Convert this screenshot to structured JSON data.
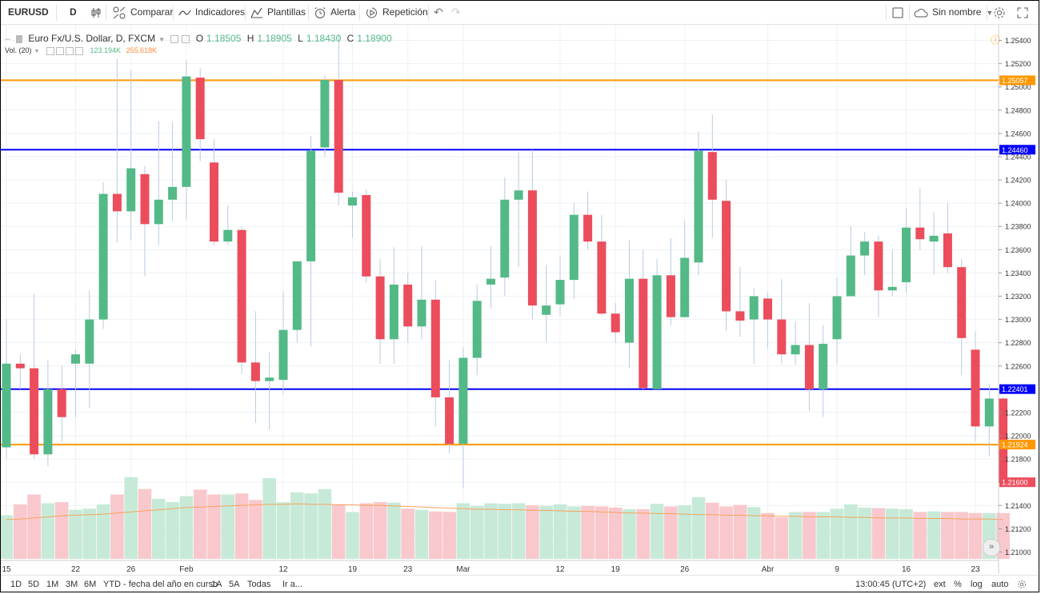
{
  "toolbar": {
    "symbol": "EURUSD",
    "interval": "D",
    "compare": "Comparar",
    "indicators": "Indicadores",
    "templates": "Plantillas",
    "alert": "Alerta",
    "replay": "Repetición",
    "layout_name": "Sin nombre"
  },
  "legend": {
    "title": "Euro Fx/U.S. Dollar, D, FXCM",
    "o_label": "O",
    "o": "1.18505",
    "h_label": "H",
    "h": "1.18905",
    "l_label": "L",
    "l": "1.18430",
    "c_label": "C",
    "c": "1.18900",
    "vol_label": "Vol. (20)",
    "vol_value": "123.194K",
    "vol_ma": "255.618K"
  },
  "bottom": {
    "ranges": [
      "1D",
      "5D",
      "1M",
      "3M",
      "6M",
      "YTD - fecha del año en curso",
      "1A",
      "5A",
      "Todas"
    ],
    "goto": "Ir a...",
    "time": "13:00:45 (UTC+2)",
    "ext": "ext",
    "pct": "%",
    "log": "log",
    "auto": "auto"
  },
  "colors": {
    "up": "#53b987",
    "down": "#eb4d5c",
    "orange_line": "#ff9800",
    "blue_line": "#0000ff"
  },
  "chart_data": {
    "type": "candlestick",
    "title": "Euro Fx/U.S. Dollar, D, FXCM",
    "ylim": [
      1.209,
      1.255
    ],
    "y_ticks": [
      "1.25400",
      "1.25200",
      "1.25000",
      "1.24800",
      "1.24600",
      "1.24400",
      "1.24200",
      "1.24000",
      "1.23800",
      "1.23600",
      "1.23400",
      "1.23200",
      "1.23000",
      "1.22800",
      "1.22600",
      "1.22400",
      "1.22200",
      "1.22000",
      "1.21800",
      "1.21600",
      "1.21400",
      "1.21200",
      "1.21000"
    ],
    "x_ticks": [
      {
        "label": "15",
        "i": 0
      },
      {
        "label": "22",
        "i": 5
      },
      {
        "label": "26",
        "i": 9
      },
      {
        "label": "Feb",
        "i": 13
      },
      {
        "label": "12",
        "i": 20
      },
      {
        "label": "19",
        "i": 25
      },
      {
        "label": "23",
        "i": 29
      },
      {
        "label": "Mar",
        "i": 33
      },
      {
        "label": "12",
        "i": 40
      },
      {
        "label": "19",
        "i": 44
      },
      {
        "label": "26",
        "i": 49
      },
      {
        "label": "Abr",
        "i": 55
      },
      {
        "label": "9",
        "i": 60
      },
      {
        "label": "16",
        "i": 65
      },
      {
        "label": "23",
        "i": 70
      }
    ],
    "hlines": [
      {
        "value": 1.25057,
        "label": "1.25057",
        "color": "orange"
      },
      {
        "value": 1.2446,
        "label": "1.24460",
        "color": "blue"
      },
      {
        "value": 1.22401,
        "label": "1.22401",
        "color": "blue"
      },
      {
        "value": 1.21924,
        "label": "1.21924",
        "color": "orange"
      }
    ],
    "last_price_label": "1.21600",
    "last_price": 1.216,
    "candles": [
      {
        "o": 1.219,
        "h": 1.23,
        "l": 1.218,
        "c": 1.2262
      },
      {
        "o": 1.2262,
        "h": 1.227,
        "l": 1.224,
        "c": 1.2258
      },
      {
        "o": 1.2258,
        "h": 1.2322,
        "l": 1.218,
        "c": 1.2184
      },
      {
        "o": 1.2184,
        "h": 1.2265,
        "l": 1.2174,
        "c": 1.224
      },
      {
        "o": 1.224,
        "h": 1.226,
        "l": 1.2195,
        "c": 1.2216
      },
      {
        "o": 1.2262,
        "h": 1.2274,
        "l": 1.2216,
        "c": 1.227
      },
      {
        "o": 1.2262,
        "h": 1.2325,
        "l": 1.2224,
        "c": 1.23
      },
      {
        "o": 1.23,
        "h": 1.2418,
        "l": 1.2292,
        "c": 1.2408
      },
      {
        "o": 1.2408,
        "h": 1.2524,
        "l": 1.2366,
        "c": 1.2393
      },
      {
        "o": 1.2393,
        "h": 1.2514,
        "l": 1.2368,
        "c": 1.243
      },
      {
        "o": 1.2425,
        "h": 1.2432,
        "l": 1.2337,
        "c": 1.2382
      },
      {
        "o": 1.2382,
        "h": 1.2471,
        "l": 1.2364,
        "c": 1.2403
      },
      {
        "o": 1.2403,
        "h": 1.247,
        "l": 1.2384,
        "c": 1.2414
      },
      {
        "o": 1.2414,
        "h": 1.2523,
        "l": 1.2386,
        "c": 1.2509
      },
      {
        "o": 1.2508,
        "h": 1.2516,
        "l": 1.2436,
        "c": 1.2455
      },
      {
        "o": 1.2435,
        "h": 1.2455,
        "l": 1.2364,
        "c": 1.2367
      },
      {
        "o": 1.2367,
        "h": 1.2398,
        "l": 1.2364,
        "c": 1.2377
      },
      {
        "o": 1.2377,
        "h": 1.238,
        "l": 1.2253,
        "c": 1.2263
      },
      {
        "o": 1.2263,
        "h": 1.2307,
        "l": 1.2211,
        "c": 1.2247
      },
      {
        "o": 1.2247,
        "h": 1.2272,
        "l": 1.2205,
        "c": 1.225
      },
      {
        "o": 1.2248,
        "h": 1.2324,
        "l": 1.2236,
        "c": 1.2291
      },
      {
        "o": 1.2291,
        "h": 1.2349,
        "l": 1.228,
        "c": 1.235
      },
      {
        "o": 1.235,
        "h": 1.2458,
        "l": 1.2277,
        "c": 1.2445
      },
      {
        "o": 1.2448,
        "h": 1.251,
        "l": 1.244,
        "c": 1.2506
      },
      {
        "o": 1.2506,
        "h": 1.2545,
        "l": 1.2398,
        "c": 1.2409
      },
      {
        "o": 1.2398,
        "h": 1.241,
        "l": 1.237,
        "c": 1.2405
      },
      {
        "o": 1.2407,
        "h": 1.2412,
        "l": 1.2332,
        "c": 1.2337
      },
      {
        "o": 1.2337,
        "h": 1.2352,
        "l": 1.2262,
        "c": 1.2283
      },
      {
        "o": 1.2283,
        "h": 1.2362,
        "l": 1.2262,
        "c": 1.233
      },
      {
        "o": 1.233,
        "h": 1.234,
        "l": 1.228,
        "c": 1.2294
      },
      {
        "o": 1.2294,
        "h": 1.2363,
        "l": 1.2283,
        "c": 1.2317
      },
      {
        "o": 1.2317,
        "h": 1.2334,
        "l": 1.2208,
        "c": 1.2233
      },
      {
        "o": 1.2233,
        "h": 1.2265,
        "l": 1.2185,
        "c": 1.2193
      },
      {
        "o": 1.2193,
        "h": 1.2276,
        "l": 1.2155,
        "c": 1.2267
      },
      {
        "o": 1.2267,
        "h": 1.233,
        "l": 1.2252,
        "c": 1.2316
      },
      {
        "o": 1.233,
        "h": 1.2363,
        "l": 1.231,
        "c": 1.2335
      },
      {
        "o": 1.2336,
        "h": 1.2422,
        "l": 1.232,
        "c": 1.2403
      },
      {
        "o": 1.2403,
        "h": 1.2444,
        "l": 1.2345,
        "c": 1.2411
      },
      {
        "o": 1.2411,
        "h": 1.2446,
        "l": 1.23,
        "c": 1.2312
      },
      {
        "o": 1.2304,
        "h": 1.2347,
        "l": 1.228,
        "c": 1.2312
      },
      {
        "o": 1.2313,
        "h": 1.2355,
        "l": 1.2303,
        "c": 1.2334
      },
      {
        "o": 1.2334,
        "h": 1.24,
        "l": 1.2318,
        "c": 1.239
      },
      {
        "o": 1.239,
        "h": 1.241,
        "l": 1.236,
        "c": 1.2367
      },
      {
        "o": 1.2367,
        "h": 1.239,
        "l": 1.2303,
        "c": 1.2305
      },
      {
        "o": 1.2305,
        "h": 1.2314,
        "l": 1.228,
        "c": 1.2289
      },
      {
        "o": 1.228,
        "h": 1.2368,
        "l": 1.2258,
        "c": 1.2335
      },
      {
        "o": 1.2335,
        "h": 1.236,
        "l": 1.224,
        "c": 1.2241
      },
      {
        "o": 1.224,
        "h": 1.2352,
        "l": 1.224,
        "c": 1.2338
      },
      {
        "o": 1.2338,
        "h": 1.237,
        "l": 1.2295,
        "c": 1.2302
      },
      {
        "o": 1.2302,
        "h": 1.2385,
        "l": 1.2302,
        "c": 1.2353
      },
      {
        "o": 1.2349,
        "h": 1.2462,
        "l": 1.2338,
        "c": 1.2445
      },
      {
        "o": 1.2444,
        "h": 1.2476,
        "l": 1.237,
        "c": 1.2403
      },
      {
        "o": 1.2402,
        "h": 1.242,
        "l": 1.229,
        "c": 1.2307
      },
      {
        "o": 1.2307,
        "h": 1.2345,
        "l": 1.2285,
        "c": 1.2299
      },
      {
        "o": 1.23,
        "h": 1.2327,
        "l": 1.2262,
        "c": 1.232
      },
      {
        "o": 1.2318,
        "h": 1.2323,
        "l": 1.2275,
        "c": 1.23
      },
      {
        "o": 1.23,
        "h": 1.2335,
        "l": 1.2262,
        "c": 1.227
      },
      {
        "o": 1.227,
        "h": 1.2298,
        "l": 1.2261,
        "c": 1.2278
      },
      {
        "o": 1.2278,
        "h": 1.2314,
        "l": 1.2221,
        "c": 1.224
      },
      {
        "o": 1.224,
        "h": 1.2295,
        "l": 1.2216,
        "c": 1.2279
      },
      {
        "o": 1.2283,
        "h": 1.2336,
        "l": 1.2262,
        "c": 1.232
      },
      {
        "o": 1.232,
        "h": 1.238,
        "l": 1.232,
        "c": 1.2355
      },
      {
        "o": 1.2355,
        "h": 1.2375,
        "l": 1.2338,
        "c": 1.2367
      },
      {
        "o": 1.2367,
        "h": 1.2372,
        "l": 1.2302,
        "c": 1.2325
      },
      {
        "o": 1.2325,
        "h": 1.236,
        "l": 1.232,
        "c": 1.2328
      },
      {
        "o": 1.2332,
        "h": 1.2396,
        "l": 1.2323,
        "c": 1.2379
      },
      {
        "o": 1.2379,
        "h": 1.2413,
        "l": 1.236,
        "c": 1.2369
      },
      {
        "o": 1.2367,
        "h": 1.2392,
        "l": 1.2339,
        "c": 1.2372
      },
      {
        "o": 1.2374,
        "h": 1.24,
        "l": 1.234,
        "c": 1.2345
      },
      {
        "o": 1.2345,
        "h": 1.2352,
        "l": 1.2252,
        "c": 1.2284
      },
      {
        "o": 1.2274,
        "h": 1.229,
        "l": 1.2195,
        "c": 1.2208
      },
      {
        "o": 1.2208,
        "h": 1.2245,
        "l": 1.2182,
        "c": 1.2232
      },
      {
        "o": 1.2232,
        "h": 1.2233,
        "l": 1.216,
        "c": 1.216
      }
    ],
    "volume_ylim": [
      0,
      220
    ],
    "volumes": [
      80,
      100,
      118,
      102,
      104,
      90,
      92,
      100,
      118,
      150,
      128,
      110,
      104,
      115,
      127,
      118,
      118,
      120,
      108,
      148,
      104,
      122,
      120,
      128,
      100,
      86,
      102,
      104,
      103,
      92,
      90,
      87,
      86,
      102,
      97,
      102,
      101,
      102,
      98,
      97,
      100,
      96,
      97,
      96,
      94,
      91,
      91,
      101,
      96,
      98,
      113,
      103,
      96,
      99,
      95,
      84,
      76,
      86,
      86,
      86,
      92,
      100,
      94,
      93,
      92,
      91,
      86,
      87,
      86,
      86,
      84,
      84,
      84
    ],
    "volume_ma": [
      72,
      73,
      75,
      77,
      79,
      80,
      81,
      82,
      84,
      86,
      88,
      90,
      92,
      94,
      95,
      96,
      97,
      98,
      99,
      100,
      100,
      101,
      100,
      100,
      99,
      99,
      98,
      98,
      97,
      96,
      95,
      94,
      93,
      92,
      91,
      91,
      90,
      90,
      89,
      89,
      88,
      87,
      87,
      86,
      85,
      84,
      84,
      83,
      83,
      82,
      81,
      81,
      80,
      80,
      79,
      79,
      78,
      78,
      77,
      77,
      77,
      76,
      76,
      75,
      75,
      75,
      74,
      74,
      74,
      73,
      73,
      73,
      72
    ]
  }
}
